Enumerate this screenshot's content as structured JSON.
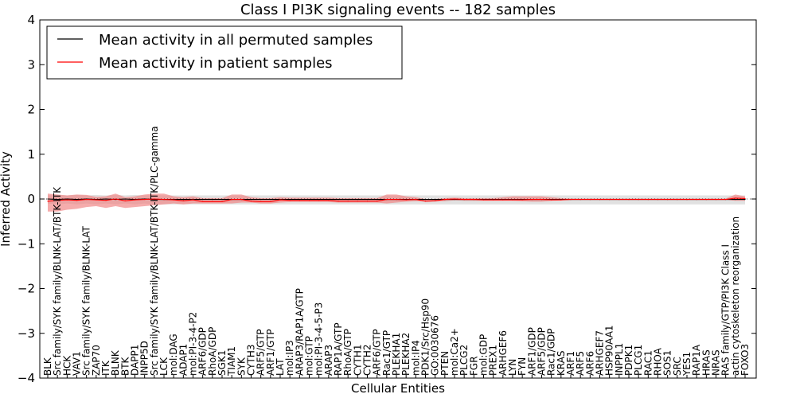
{
  "chart_data": {
    "type": "line",
    "title": "Class I PI3K signaling events -- 182 samples",
    "xlabel": "Cellular Entities",
    "ylabel": "Inferred Activity",
    "ylim": [
      -4,
      4
    ],
    "yticks": [
      -4,
      -3,
      -2,
      -1,
      0,
      1,
      2,
      3,
      4
    ],
    "ytick_labels": [
      "−4",
      "−3",
      "−2",
      "−1",
      "0",
      "1",
      "2",
      "3",
      "4"
    ],
    "legend_position": "top-left",
    "categories": [
      "BLK",
      "Src family/SYK family/BLNK-LAT/BTK-ITK",
      "HCK",
      "VAV1",
      "Src family/SYK family/BLNK-LAT",
      "ZAP70",
      "ITK",
      "BLNK",
      "BTK",
      "DAPP1",
      "INPP5D",
      "Src family/SYK family/BLNK-LAT/BTK-ITK/PLC-gamma",
      "LCK",
      "mol:DAG",
      "ADAP1",
      "mol:PI-3-4-P2",
      "ARF6/GDP",
      "RhoA/GDP",
      "SGK1",
      "TIAM1",
      "SYK",
      "CYTH3",
      "ARF5/GTP",
      "ARF1/GTP",
      "LAT",
      "mol:IP3",
      "ARAP3/RAP1A/GTP",
      "mol:GTP",
      "mol:PI-3-4-5-P3",
      "ARAP3",
      "RAP1A/GTP",
      "RhoA/GTP",
      "CYTH1",
      "CYTH2",
      "ARF6/GTP",
      "Rac1/GTP",
      "PLEKHA1",
      "PLEKHA2",
      "mol:IP4",
      "PDK1/Src/Hsp90",
      "GO:0030676",
      "PTEN",
      "mol:Ca2+",
      "PLCG2",
      "FGR",
      "mol:GDP",
      "PREX1",
      "ARHGEF6",
      "LYN",
      "FYN",
      "ARF1/GDP",
      "ARF5/GDP",
      "Rac1/GDP",
      "KRAS",
      "ARF1",
      "ARF5",
      "ARF6",
      "ARHGEF7",
      "HSP90AA1",
      "INPPL1",
      "PDPK1",
      "PLCG1",
      "RAC1",
      "RHOA",
      "SOS1",
      "SRC",
      "YES1",
      "RAP1A",
      "HRAS",
      "NRAS",
      "RAS family/GTP/PI3K Class I",
      "actin cytoskeleton reorganization",
      "FOXO3"
    ],
    "series": [
      {
        "name": "Mean activity in all permuted samples",
        "color": "#000000",
        "band_color": "#c8c8c8",
        "values": [
          0.0,
          -0.01,
          0.0,
          -0.01,
          0.0,
          -0.01,
          0.0,
          -0.01,
          0.0,
          -0.01,
          0.0,
          -0.01,
          -0.01,
          -0.01,
          -0.01,
          -0.01,
          -0.01,
          -0.01,
          -0.01,
          -0.01,
          -0.01,
          -0.01,
          -0.01,
          -0.01,
          -0.01,
          -0.01,
          -0.01,
          -0.01,
          -0.01,
          -0.01,
          -0.01,
          -0.01,
          -0.01,
          -0.01,
          -0.01,
          -0.01,
          -0.01,
          -0.01,
          -0.01,
          -0.01,
          -0.01,
          -0.01,
          -0.01,
          -0.01,
          -0.01,
          -0.01,
          -0.01,
          -0.01,
          -0.01,
          -0.01,
          -0.01,
          -0.01,
          -0.01,
          -0.01,
          -0.01,
          -0.01,
          -0.01,
          -0.01,
          -0.01,
          -0.01,
          -0.01,
          -0.01,
          -0.01,
          -0.01,
          -0.01,
          -0.01,
          -0.01,
          -0.01,
          -0.01,
          -0.01,
          -0.01,
          -0.01,
          -0.01
        ],
        "band_lower": [
          -0.1,
          -0.12,
          -0.1,
          -0.12,
          -0.1,
          -0.12,
          -0.1,
          -0.12,
          -0.1,
          -0.12,
          -0.1,
          -0.12,
          -0.12,
          -0.12,
          -0.12,
          -0.12,
          -0.12,
          -0.12,
          -0.12,
          -0.12,
          -0.12,
          -0.12,
          -0.12,
          -0.12,
          -0.12,
          -0.12,
          -0.12,
          -0.12,
          -0.12,
          -0.12,
          -0.12,
          -0.12,
          -0.12,
          -0.12,
          -0.12,
          -0.12,
          -0.12,
          -0.12,
          -0.12,
          -0.12,
          -0.12,
          -0.12,
          -0.12,
          -0.12,
          -0.12,
          -0.12,
          -0.12,
          -0.12,
          -0.12,
          -0.12,
          -0.12,
          -0.12,
          -0.12,
          -0.12,
          -0.12,
          -0.12,
          -0.12,
          -0.12,
          -0.12,
          -0.12,
          -0.12,
          -0.12,
          -0.12,
          -0.12,
          -0.12,
          -0.12,
          -0.12,
          -0.12,
          -0.12,
          -0.12,
          -0.12,
          -0.12,
          -0.12
        ],
        "band_upper": [
          0.08,
          0.09,
          0.08,
          0.09,
          0.08,
          0.09,
          0.08,
          0.09,
          0.08,
          0.09,
          0.08,
          0.09,
          0.08,
          0.08,
          0.08,
          0.08,
          0.08,
          0.08,
          0.08,
          0.08,
          0.08,
          0.08,
          0.08,
          0.08,
          0.08,
          0.08,
          0.08,
          0.08,
          0.08,
          0.08,
          0.08,
          0.08,
          0.08,
          0.08,
          0.08,
          0.08,
          0.08,
          0.08,
          0.08,
          0.08,
          0.08,
          0.08,
          0.08,
          0.08,
          0.08,
          0.08,
          0.08,
          0.08,
          0.08,
          0.08,
          0.08,
          0.08,
          0.08,
          0.08,
          0.08,
          0.08,
          0.08,
          0.08,
          0.08,
          0.08,
          0.08,
          0.08,
          0.08,
          0.08,
          0.08,
          0.08,
          0.08,
          0.08,
          0.08,
          0.08,
          0.08,
          0.08,
          0.08
        ]
      },
      {
        "name": "Mean activity in patient samples",
        "color": "#ff0000",
        "band_color": "#f08080",
        "values": [
          -0.05,
          -0.03,
          -0.02,
          -0.03,
          -0.01,
          -0.02,
          -0.03,
          0.0,
          -0.04,
          -0.02,
          -0.01,
          0.0,
          -0.01,
          -0.02,
          -0.04,
          -0.02,
          -0.06,
          -0.06,
          -0.06,
          -0.01,
          -0.01,
          -0.05,
          -0.06,
          -0.06,
          -0.02,
          -0.03,
          -0.03,
          -0.03,
          -0.03,
          -0.03,
          -0.05,
          -0.05,
          -0.05,
          -0.05,
          -0.05,
          -0.01,
          -0.01,
          -0.02,
          -0.01,
          -0.05,
          -0.04,
          -0.01,
          0.0,
          -0.01,
          -0.01,
          -0.02,
          -0.02,
          -0.02,
          -0.02,
          -0.02,
          -0.01,
          -0.01,
          -0.02,
          -0.02,
          -0.01,
          -0.01,
          -0.01,
          -0.01,
          -0.01,
          -0.01,
          -0.01,
          -0.01,
          -0.01,
          -0.01,
          -0.01,
          -0.01,
          -0.01,
          -0.01,
          -0.01,
          -0.01,
          -0.01,
          0.02,
          0.01
        ],
        "band_lower": [
          -0.28,
          -0.28,
          -0.24,
          -0.22,
          -0.18,
          -0.16,
          -0.2,
          -0.16,
          -0.2,
          -0.18,
          -0.16,
          -0.14,
          -0.12,
          -0.1,
          -0.12,
          -0.1,
          -0.1,
          -0.1,
          -0.1,
          -0.1,
          -0.08,
          -0.08,
          -0.1,
          -0.1,
          -0.08,
          -0.07,
          -0.07,
          -0.07,
          -0.07,
          -0.07,
          -0.08,
          -0.08,
          -0.08,
          -0.08,
          -0.08,
          -0.1,
          -0.08,
          -0.06,
          -0.05,
          -0.05,
          -0.05,
          -0.05,
          -0.03,
          -0.04,
          -0.04,
          -0.04,
          -0.04,
          -0.04,
          -0.04,
          -0.05,
          -0.06,
          -0.06,
          -0.04,
          -0.03,
          -0.02,
          -0.02,
          -0.02,
          -0.02,
          -0.02,
          -0.02,
          -0.02,
          -0.02,
          -0.02,
          -0.02,
          -0.02,
          -0.02,
          -0.02,
          -0.02,
          -0.02,
          -0.02,
          -0.02,
          -0.04,
          -0.04
        ],
        "band_upper": [
          0.12,
          0.1,
          0.08,
          0.1,
          0.09,
          0.05,
          0.06,
          0.12,
          0.04,
          0.06,
          0.1,
          0.12,
          0.12,
          0.06,
          0.04,
          0.06,
          0.02,
          0.02,
          0.02,
          0.1,
          0.1,
          0.04,
          0.02,
          0.02,
          0.04,
          0.03,
          0.03,
          0.03,
          0.03,
          0.03,
          0.02,
          0.02,
          0.02,
          0.02,
          0.02,
          0.1,
          0.1,
          0.06,
          0.04,
          0.0,
          0.0,
          0.02,
          0.03,
          0.02,
          0.02,
          0.02,
          0.02,
          0.04,
          0.06,
          0.06,
          0.06,
          0.06,
          0.04,
          0.02,
          0.01,
          0.01,
          0.01,
          0.01,
          0.01,
          0.01,
          0.01,
          0.01,
          0.01,
          0.01,
          0.01,
          0.01,
          0.01,
          0.01,
          0.01,
          0.01,
          0.01,
          0.1,
          0.06
        ]
      }
    ]
  }
}
